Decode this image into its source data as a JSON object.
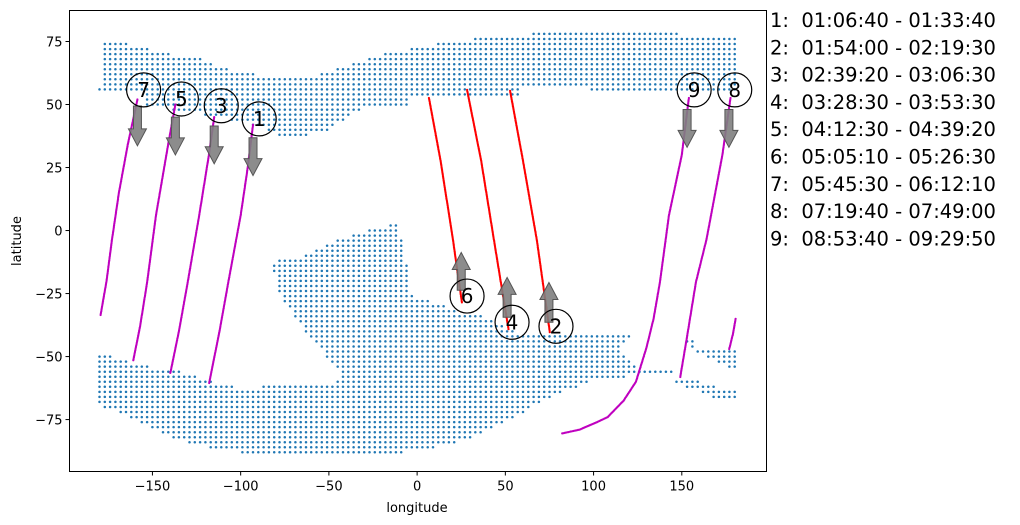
{
  "chart_data": {
    "type": "scatter",
    "title": "",
    "xlabel": "longitude",
    "ylabel": "latitude",
    "xlim": [
      -197,
      198
    ],
    "ylim": [
      -95.6,
      87.3
    ],
    "xticks": [
      -150,
      -100,
      -50,
      0,
      50,
      100,
      150
    ],
    "yticks": [
      75,
      50,
      25,
      0,
      -25,
      -50,
      -75
    ],
    "grid": false,
    "land_grid_step": {
      "lon": 3,
      "lat": 2
    },
    "land_color": "#1f77b4",
    "land_regions": [
      [
        [
          -179,
          77
        ],
        [
          -179,
          74.8
        ],
        [
          -164,
          74.8
        ],
        [
          -163,
          72.8
        ],
        [
          -151,
          72.8
        ],
        [
          -151,
          70.8
        ],
        [
          -140,
          70.8
        ],
        [
          -140,
          68.8
        ],
        [
          -121,
          68.8
        ],
        [
          -121,
          66.9
        ],
        [
          -115,
          66.9
        ],
        [
          -115,
          64.9
        ],
        [
          -107,
          64.9
        ],
        [
          -107,
          62.9
        ],
        [
          -92,
          62.9
        ],
        [
          -92,
          60.9
        ],
        [
          -54,
          62
        ],
        [
          -32,
          67
        ],
        [
          -15,
          70.8
        ],
        [
          0.5,
          72.8
        ],
        [
          16,
          74.8
        ],
        [
          40,
          76.8
        ],
        [
          79,
          78.8
        ],
        [
          149,
          78.8
        ],
        [
          149,
          76.8
        ],
        [
          180.5,
          76.8
        ],
        [
          180.5,
          56
        ],
        [
          97,
          56
        ],
        [
          97,
          58
        ],
        [
          59,
          58
        ],
        [
          59,
          54
        ],
        [
          -4.5,
          54
        ],
        [
          -4.5,
          50
        ],
        [
          -20,
          50
        ],
        [
          -33,
          47.5
        ],
        [
          -50,
          40
        ],
        [
          -65,
          37.5
        ],
        [
          -78,
          37.5
        ],
        [
          -90,
          41
        ],
        [
          -106,
          44
        ],
        [
          -121,
          46
        ],
        [
          -155,
          50
        ],
        [
          -155,
          56
        ],
        [
          -180,
          56
        ]
      ],
      [
        [
          -9.6,
          3.5
        ],
        [
          -33,
          -0.8
        ],
        [
          -42,
          -3
        ],
        [
          -57,
          -7
        ],
        [
          -68,
          -11
        ],
        [
          -85,
          -12.5
        ],
        [
          -80,
          -17
        ],
        [
          -78,
          -25
        ],
        [
          -71,
          -33
        ],
        [
          -60,
          -43
        ],
        [
          -52,
          -49.5
        ],
        [
          -43,
          -57
        ],
        [
          -47.5,
          -60.5
        ],
        [
          -101,
          -62.5
        ],
        [
          -121,
          -59
        ],
        [
          -139,
          -55
        ],
        [
          -156,
          -53.5
        ],
        [
          -166,
          -51.5
        ],
        [
          -180.5,
          -48.5
        ],
        [
          -180.5,
          -69.5
        ],
        [
          -171,
          -71.5
        ],
        [
          -159,
          -75.5
        ],
        [
          -141,
          -81.5
        ],
        [
          -123,
          -85.5
        ],
        [
          -96,
          -88.5
        ],
        [
          -13,
          -88.5
        ],
        [
          14,
          -85.5
        ],
        [
          26,
          -83.5
        ],
        [
          57,
          -73.5
        ],
        [
          76.5,
          -65.5
        ],
        [
          92,
          -61.5
        ],
        [
          101,
          -59.5
        ],
        [
          125,
          -57.5
        ],
        [
          145.5,
          -57.5
        ],
        [
          145.5,
          -54.5
        ],
        [
          125,
          -54.5
        ],
        [
          115,
          -46.5
        ],
        [
          121,
          -41.5
        ],
        [
          121,
          -40.5
        ],
        [
          56,
          -40.5
        ],
        [
          41,
          -34.5
        ],
        [
          26,
          -32.5
        ],
        [
          -4.5,
          -25.5
        ],
        [
          -4.5,
          -17
        ],
        [
          -8.5,
          -8.7
        ]
      ],
      [
        [
          151,
          -43.5
        ],
        [
          157,
          -43.5
        ],
        [
          157,
          -46.5
        ],
        [
          180.5,
          -46.5
        ],
        [
          180.5,
          -54
        ],
        [
          176,
          -54
        ],
        [
          157,
          -48
        ]
      ],
      [
        [
          145.5,
          -58.5
        ],
        [
          158,
          -59
        ],
        [
          172,
          -63
        ],
        [
          180.5,
          -63
        ],
        [
          180.5,
          -67.5
        ],
        [
          172,
          -67.5
        ],
        [
          156,
          -63
        ],
        [
          145.5,
          -60.5
        ]
      ]
    ],
    "tracks": [
      {
        "id": "1",
        "color": "#bf00bf",
        "direction": "south",
        "label_at": [
          -89.5,
          44.3
        ],
        "arrow": [
          [
            -93,
            36.8
          ],
          [
            -93,
            21.8
          ]
        ],
        "points": [
          [
            -93,
            42
          ],
          [
            -96,
            25
          ],
          [
            -100,
            6
          ],
          [
            -107,
            -20.5
          ],
          [
            -112,
            -40
          ],
          [
            -118,
            -61
          ]
        ]
      },
      {
        "id": "2",
        "color": "#ff0000",
        "direction": "north",
        "label_at": [
          78.7,
          -38
        ],
        "arrow": [
          [
            74.7,
            -36.4
          ],
          [
            74.7,
            -20.6
          ]
        ],
        "points": [
          [
            52.7,
            55.4
          ],
          [
            60,
            27.7
          ],
          [
            67.9,
            -4
          ],
          [
            75.3,
            -40.8
          ]
        ]
      },
      {
        "id": "3",
        "color": "#bf00bf",
        "direction": "south",
        "label_at": [
          -111,
          49.5
        ],
        "arrow": [
          [
            -115,
            41.5
          ],
          [
            -115,
            26.5
          ]
        ],
        "points": [
          [
            -115,
            45
          ],
          [
            -118,
            30
          ],
          [
            -123.5,
            6
          ],
          [
            -130,
            -20.5
          ],
          [
            -135,
            -40
          ],
          [
            -140,
            -57
          ]
        ]
      },
      {
        "id": "4",
        "color": "#ff0000",
        "direction": "north",
        "label_at": [
          53.8,
          -36.4
        ],
        "arrow": [
          [
            51,
            -34.4
          ],
          [
            51,
            -18.6
          ]
        ],
        "points": [
          [
            28.3,
            55.8
          ],
          [
            36.3,
            27.7
          ],
          [
            43.6,
            -4
          ],
          [
            51.9,
            -39.6
          ]
        ]
      },
      {
        "id": "5",
        "color": "#bf00bf",
        "direction": "south",
        "label_at": [
          -133.6,
          52.2
        ],
        "arrow": [
          [
            -137,
            45
          ],
          [
            -137,
            30
          ]
        ],
        "points": [
          [
            -137,
            50
          ],
          [
            -141,
            34.5
          ],
          [
            -148,
            6
          ],
          [
            -153,
            -20.5
          ],
          [
            -157,
            -38
          ],
          [
            -161,
            -52
          ]
        ]
      },
      {
        "id": "6",
        "color": "#ff0000",
        "direction": "north",
        "label_at": [
          28.3,
          -26
        ],
        "arrow": [
          [
            25,
            -23.7
          ],
          [
            25,
            -8.7
          ]
        ],
        "points": [
          [
            6.7,
            52.6
          ],
          [
            13.3,
            27.7
          ],
          [
            20.4,
            -4
          ],
          [
            23,
            -17
          ],
          [
            25.5,
            -29
          ]
        ]
      },
      {
        "id": "7",
        "color": "#bf00bf",
        "direction": "south",
        "label_at": [
          -155,
          55.8
        ],
        "arrow": [
          [
            -158.5,
            49.4
          ],
          [
            -158.5,
            33.6
          ]
        ],
        "points": [
          [
            -158.5,
            52
          ],
          [
            -164,
            34
          ],
          [
            -169,
            15
          ],
          [
            -173,
            -4
          ],
          [
            -176,
            -20
          ],
          [
            -179.5,
            -34
          ]
        ],
        "wrap_points": [
          [
            180.5,
            -35
          ],
          [
            179,
            -41
          ],
          [
            176.7,
            -47.5
          ]
        ]
      },
      {
        "id": "8",
        "color": "#bf00bf",
        "direction": "south",
        "label_at": [
          180,
          55.8
        ],
        "arrow": [
          [
            176.7,
            48
          ],
          [
            176.7,
            33
          ]
        ],
        "points": [
          [
            177.6,
            52.6
          ],
          [
            173,
            30
          ],
          [
            164,
            -3.5
          ],
          [
            158,
            -20.5
          ],
          [
            153,
            -42
          ],
          [
            149,
            -58.6
          ]
        ]
      },
      {
        "id": "9",
        "color": "#bf00bf",
        "direction": "south",
        "label_at": [
          157,
          55.8
        ],
        "arrow": [
          [
            153,
            48
          ],
          [
            153,
            33
          ]
        ],
        "points": [
          [
            154,
            52.6
          ],
          [
            150,
            30
          ],
          [
            142.7,
            6
          ],
          [
            137.6,
            -20.5
          ],
          [
            134,
            -35
          ],
          [
            130,
            -46.4
          ],
          [
            124,
            -60
          ],
          [
            117,
            -67.5
          ],
          [
            108,
            -74
          ],
          [
            102,
            -76
          ],
          [
            92,
            -79
          ],
          [
            81.5,
            -80.6
          ]
        ]
      }
    ],
    "legend_entries": [
      "1:  01:06:40 - 01:33:40",
      "2:  01:54:00 - 02:19:30",
      "3:  02:39:20 - 03:06:30",
      "4:  03:28:30 - 03:53:30",
      "5:  04:12:30 - 04:39:20",
      "6:  05:05:10 - 05:26:30",
      "7:  05:45:30 - 06:12:10",
      "8:  07:19:40 - 07:49:00",
      "9:  08:53:40 - 09:29:50"
    ],
    "legend_placement": "right"
  }
}
